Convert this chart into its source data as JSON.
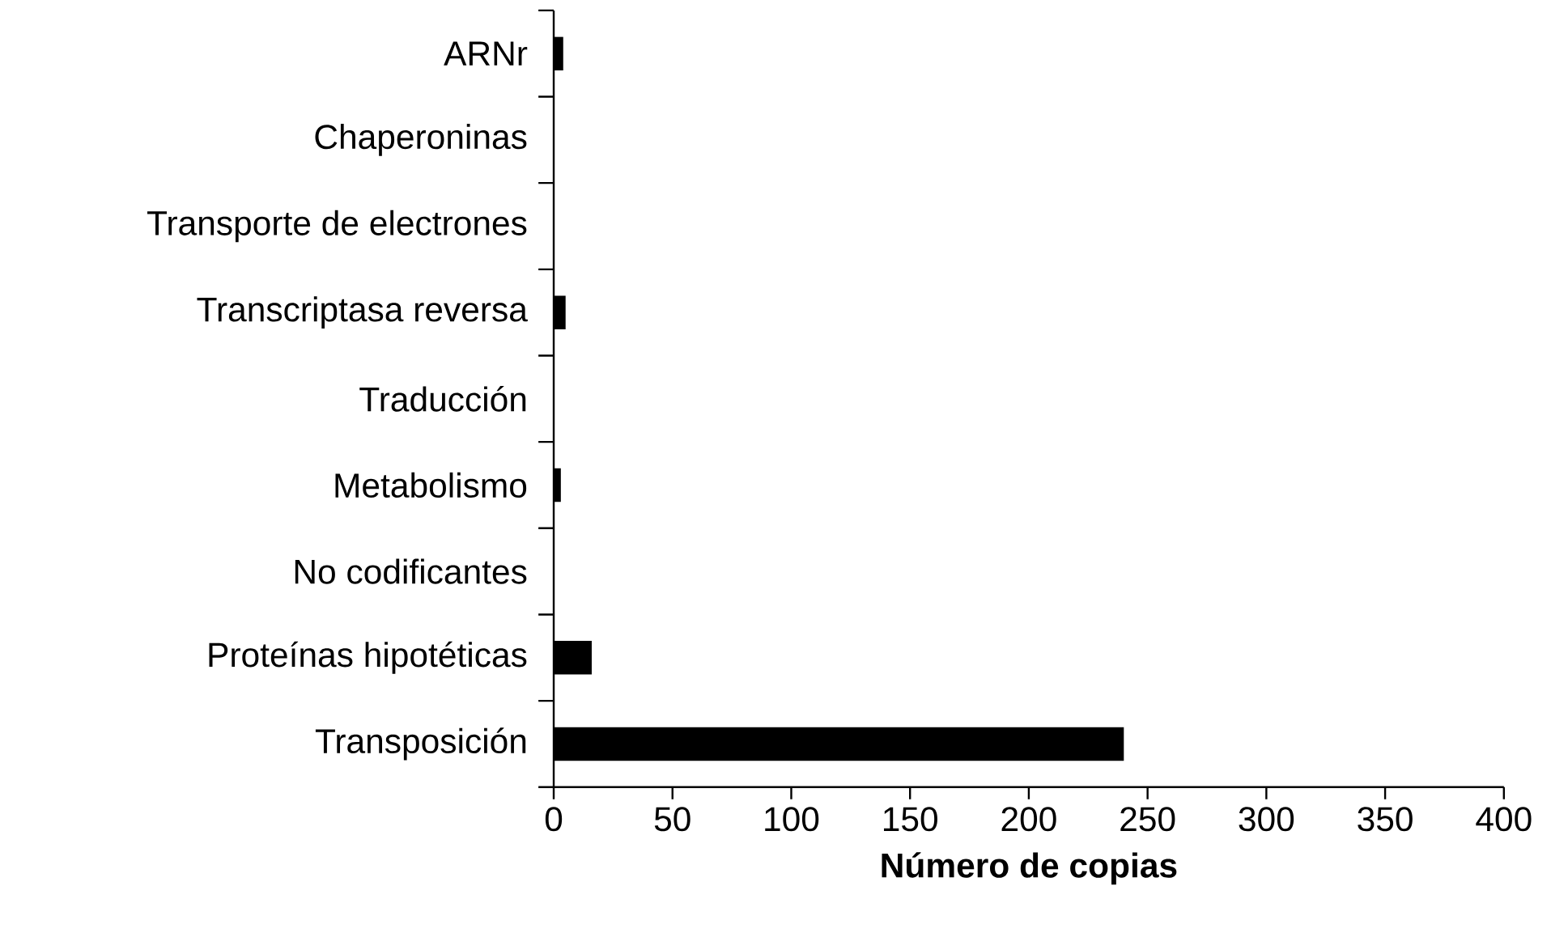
{
  "chart_data": {
    "type": "bar",
    "orientation": "horizontal",
    "xlabel": "Número de copias",
    "categories": [
      "ARNr",
      "Chaperoninas",
      "Transporte de electrones",
      "Transcriptasa reversa",
      "Traducción",
      "Metabolismo",
      "No codificantes",
      "Proteínas hipotéticas",
      "Transposición"
    ],
    "values": [
      4,
      0,
      0,
      5,
      0,
      3,
      0,
      16,
      240
    ],
    "color": "#000000",
    "xticks": [
      0,
      50,
      100,
      150,
      200,
      250,
      300,
      350,
      400
    ],
    "xlim": [
      0,
      400
    ]
  }
}
